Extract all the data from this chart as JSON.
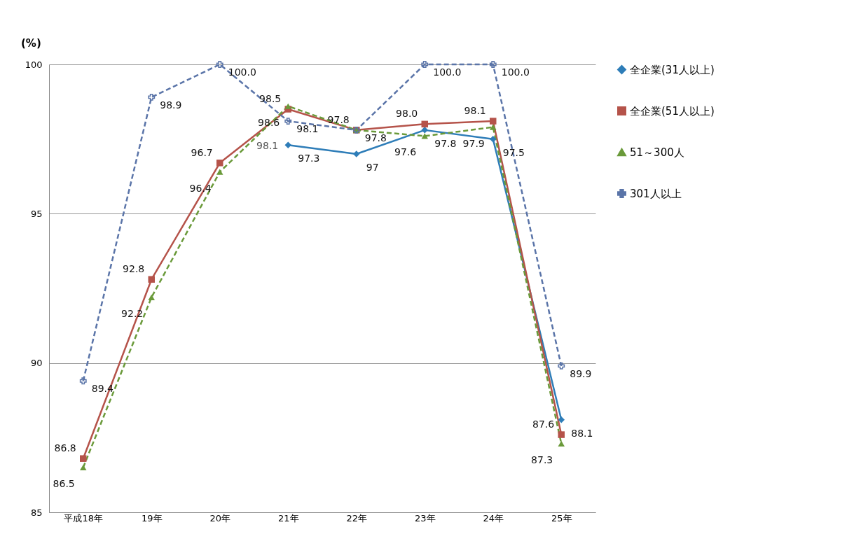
{
  "chart_data": {
    "type": "line",
    "ylabel": "(%)",
    "categories": [
      "平成18年",
      "19年",
      "20年",
      "21年",
      "22年",
      "23年",
      "24年",
      "25年"
    ],
    "series": [
      {
        "name": "全企業(31人以上)",
        "color": "#2e7db8",
        "marker": "diamond",
        "line_style": "solid",
        "values": [
          null,
          null,
          null,
          97.3,
          97,
          97.8,
          97.5,
          88.1
        ],
        "value_labels": [
          null,
          null,
          null,
          "97.3",
          "97",
          "97.8",
          "97.5",
          "88.1"
        ]
      },
      {
        "name": "全企業(51人以上)",
        "color": "#b5534a",
        "marker": "square",
        "line_style": "solid",
        "values": [
          86.8,
          92.8,
          96.7,
          98.5,
          97.8,
          98.0,
          98.1,
          87.6
        ],
        "value_labels": [
          "86.8",
          "92.8",
          "96.7",
          "98.5",
          "97.8",
          "98.0",
          "98.1",
          "87.6"
        ]
      },
      {
        "name": "51～300人",
        "color": "#6a9a3a",
        "marker": "triangle",
        "line_style": "dashed",
        "values": [
          86.5,
          92.2,
          96.4,
          98.6,
          97.8,
          97.6,
          97.9,
          87.3
        ],
        "value_labels": [
          "86.5",
          "92.2",
          "96.4",
          "98.6",
          null,
          "97.6",
          "97.9",
          "87.3"
        ]
      },
      {
        "name": "301人以上",
        "color": "#5a74a8",
        "marker": "cross",
        "line_style": "dashed",
        "values": [
          89.4,
          98.9,
          100.0,
          98.1,
          97.8,
          100.0,
          100.0,
          89.9
        ],
        "value_labels": [
          "89.4",
          "98.9",
          "100.0",
          "98.1",
          "97.8",
          "100.0",
          "100.0",
          "89.9"
        ]
      }
    ],
    "annotations": [
      {
        "text": "98.1",
        "x": "21年",
        "y": 98.1
      }
    ],
    "ylim": [
      85,
      100
    ],
    "yticks": [
      85,
      90,
      95,
      100
    ],
    "grid": "y",
    "legend": "right"
  }
}
